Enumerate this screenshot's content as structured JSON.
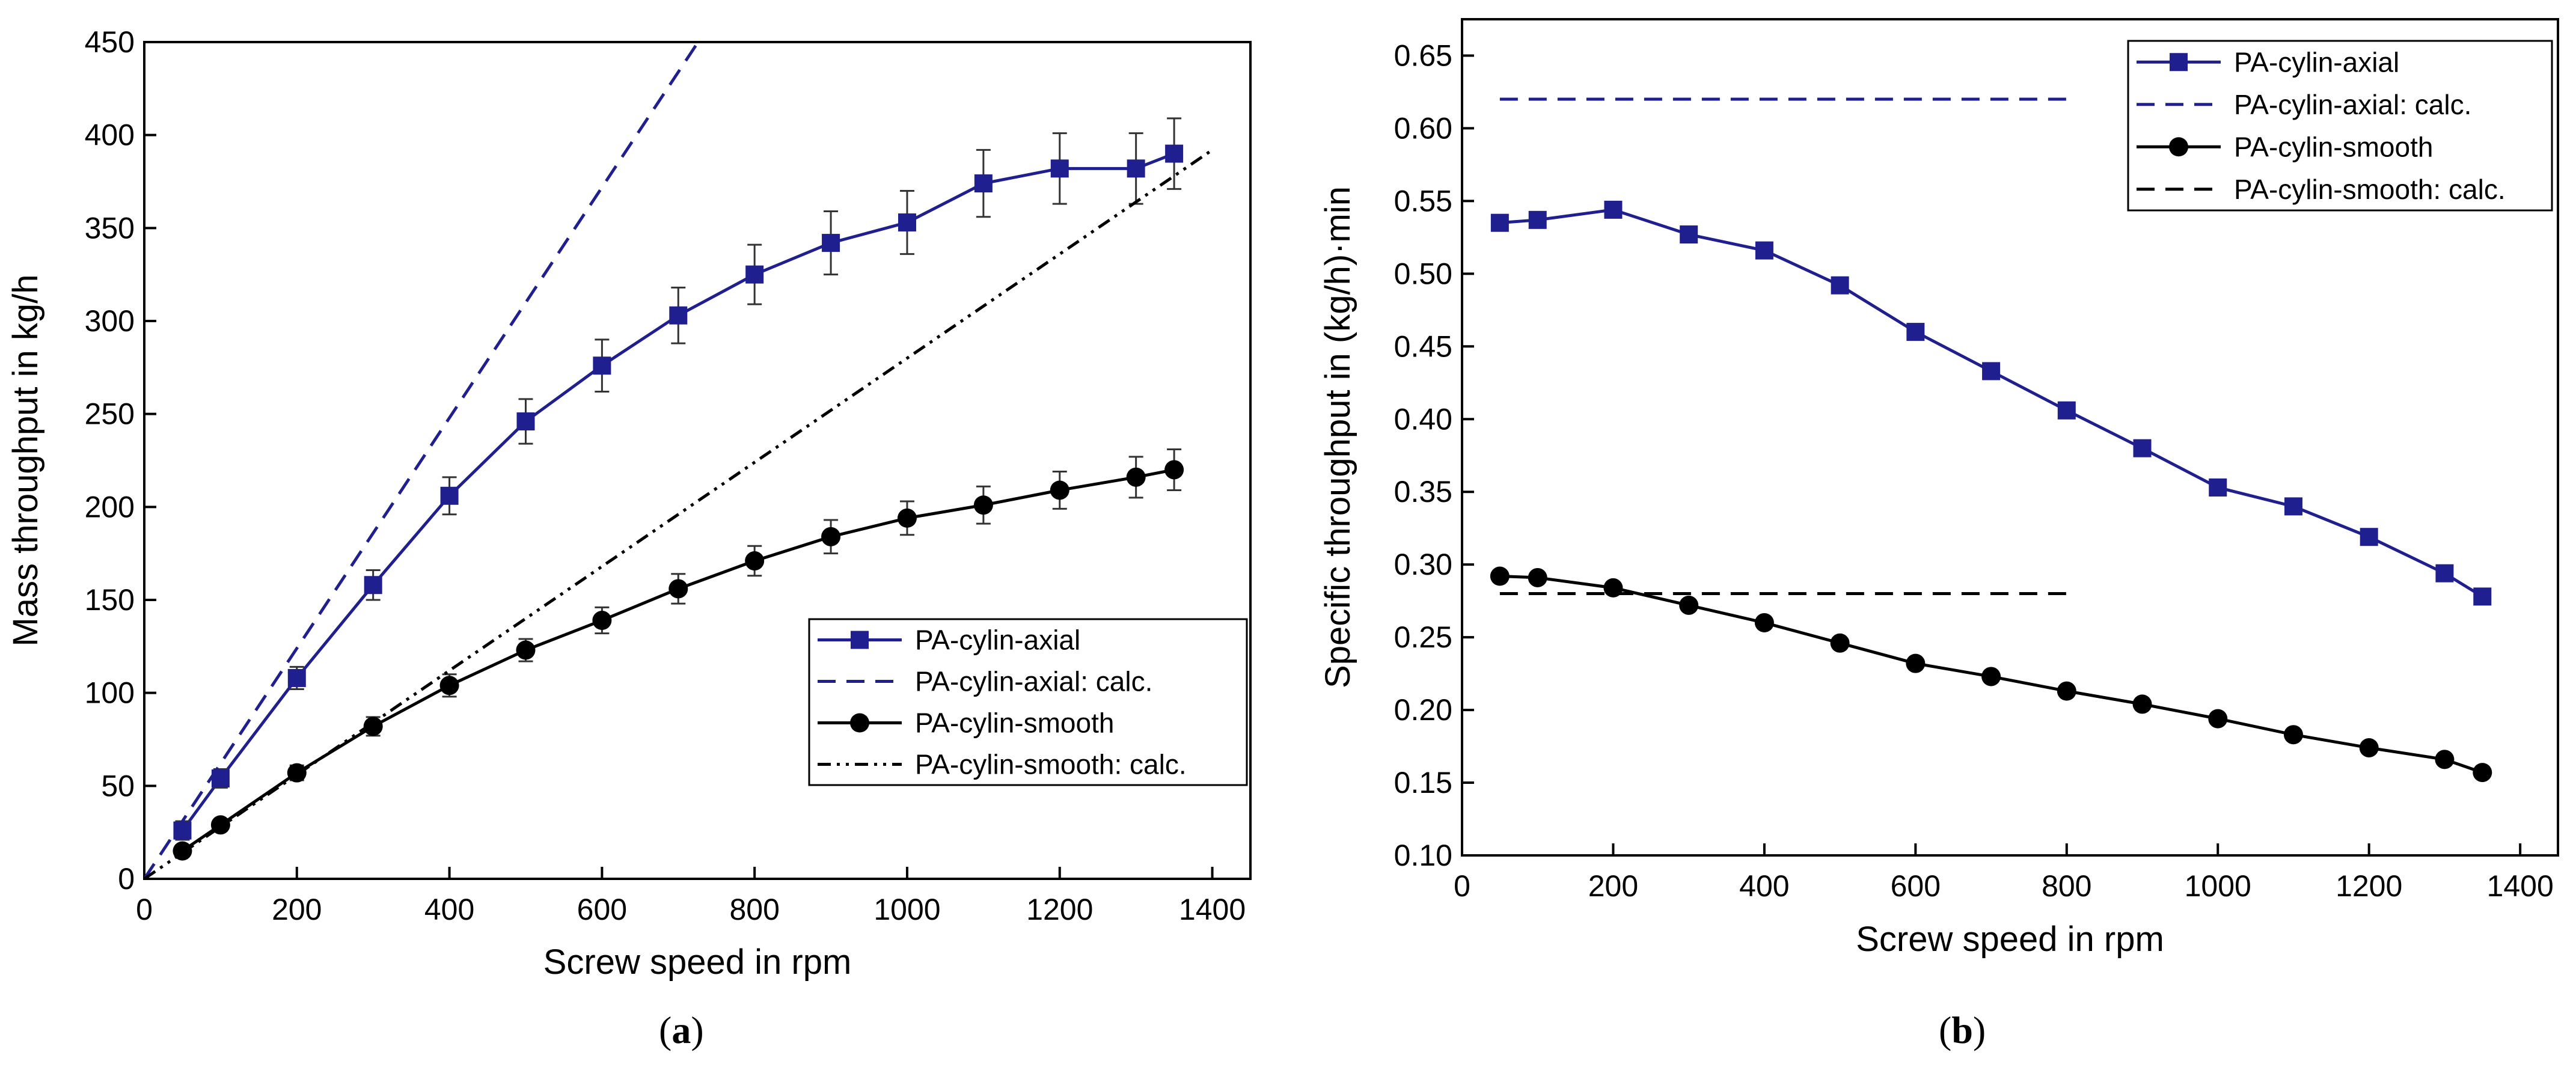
{
  "chart_data": [
    {
      "panel_label": "(a)",
      "type": "line",
      "title": "",
      "xlabel": "Screw speed in rpm",
      "ylabel": "Mass throughput in kg/h",
      "xlim": [
        0,
        1450
      ],
      "ylim": [
        0,
        450
      ],
      "x_ticks": [
        0,
        200,
        400,
        600,
        800,
        1000,
        1200,
        1400
      ],
      "y_ticks": [
        0,
        50,
        100,
        150,
        200,
        250,
        300,
        350,
        400,
        450
      ],
      "grid": false,
      "legend_position": "bottom-right",
      "series": [
        {
          "name": "PA-cylin-axial",
          "style": "solid",
          "marker": "square",
          "color": "#1f1f8f",
          "x": [
            50,
            100,
            200,
            300,
            400,
            500,
            600,
            700,
            800,
            900,
            1000,
            1100,
            1200,
            1300,
            1350
          ],
          "y": [
            26,
            54,
            108,
            158,
            206,
            246,
            276,
            303,
            325,
            342,
            353,
            374,
            382,
            382,
            390
          ],
          "error": [
            5,
            5,
            6,
            8,
            10,
            12,
            14,
            15,
            16,
            17,
            17,
            18,
            19,
            19,
            19
          ]
        },
        {
          "name": "PA-cylin-axial: calc.",
          "style": "dashed",
          "marker": "none",
          "color": "#1f1f8f",
          "x": [
            0,
            726
          ],
          "y": [
            0,
            450
          ]
        },
        {
          "name": "PA-cylin-smooth",
          "style": "solid",
          "marker": "circle",
          "color": "#000000",
          "x": [
            50,
            100,
            200,
            300,
            400,
            500,
            600,
            700,
            800,
            900,
            1000,
            1100,
            1200,
            1300,
            1350
          ],
          "y": [
            15,
            29,
            57,
            82,
            104,
            123,
            139,
            156,
            171,
            184,
            194,
            201,
            209,
            216,
            220
          ],
          "error": [
            3,
            3,
            4,
            5,
            6,
            6,
            7,
            8,
            8,
            9,
            9,
            10,
            10,
            11,
            11
          ]
        },
        {
          "name": "PA-cylin-smooth: calc.",
          "style": "dashdotdot",
          "marker": "none",
          "color": "#000000",
          "x": [
            0,
            1400
          ],
          "y": [
            0,
            392
          ]
        }
      ]
    },
    {
      "panel_label": "(b)",
      "type": "line",
      "title": "",
      "xlabel": "Screw speed in rpm",
      "ylabel": "Specific throughput in (kg/h)·min",
      "xlim": [
        0,
        1450
      ],
      "ylim": [
        0.1,
        0.675
      ],
      "x_ticks": [
        0,
        200,
        400,
        600,
        800,
        1000,
        1200,
        1400
      ],
      "y_ticks": [
        0.1,
        0.15,
        0.2,
        0.25,
        0.3,
        0.35,
        0.4,
        0.45,
        0.5,
        0.55,
        0.6,
        0.65
      ],
      "y_tick_labels": [
        "0.10",
        "0.15",
        "0.20",
        "0.25",
        "0.30",
        "0.35",
        "0.40",
        "0.45",
        "0.50",
        "0.55",
        "0.60",
        "0.65"
      ],
      "grid": false,
      "legend_position": "top-right",
      "series": [
        {
          "name": "PA-cylin-axial",
          "style": "solid",
          "marker": "square",
          "color": "#1f1f8f",
          "x": [
            50,
            100,
            200,
            300,
            400,
            500,
            600,
            700,
            800,
            900,
            1000,
            1100,
            1200,
            1300,
            1350
          ],
          "y": [
            0.535,
            0.537,
            0.544,
            0.527,
            0.516,
            0.492,
            0.46,
            0.433,
            0.406,
            0.38,
            0.353,
            0.34,
            0.319,
            0.294,
            0.278
          ]
        },
        {
          "name": "PA-cylin-axial: calc.",
          "style": "dashed",
          "marker": "none",
          "color": "#1f1f8f",
          "x": [
            50,
            800
          ],
          "y": [
            0.62,
            0.62
          ]
        },
        {
          "name": "PA-cylin-smooth",
          "style": "solid",
          "marker": "circle",
          "color": "#000000",
          "x": [
            50,
            100,
            200,
            300,
            400,
            500,
            600,
            700,
            800,
            900,
            1000,
            1100,
            1200,
            1300,
            1350
          ],
          "y": [
            0.292,
            0.291,
            0.284,
            0.272,
            0.26,
            0.246,
            0.232,
            0.223,
            0.213,
            0.204,
            0.194,
            0.183,
            0.174,
            0.166,
            0.157
          ]
        },
        {
          "name": "PA-cylin-smooth: calc.",
          "style": "dashed",
          "marker": "none",
          "color": "#000000",
          "x": [
            50,
            800
          ],
          "y": [
            0.28,
            0.28
          ]
        }
      ]
    }
  ]
}
